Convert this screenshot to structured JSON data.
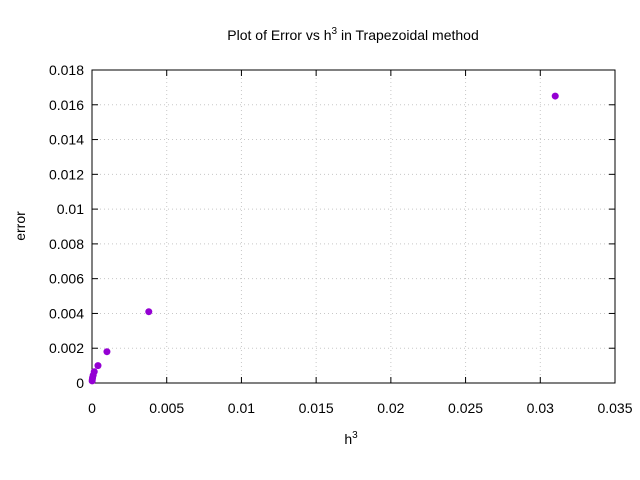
{
  "chart_data": {
    "type": "scatter",
    "title_main": "Plot of Error vs h",
    "title_sup": "3",
    "title_tail": " in Trapezoidal method",
    "xlabel_main": "h",
    "xlabel_sup": "3",
    "ylabel": "error",
    "xlim": [
      0,
      0.035
    ],
    "ylim": [
      0,
      0.018
    ],
    "x_ticks": [
      0,
      0.005,
      0.01,
      0.015,
      0.02,
      0.025,
      0.03,
      0.035
    ],
    "x_tick_labels": [
      "0",
      "0.005",
      "0.01",
      "0.015",
      "0.02",
      "0.025",
      "0.03",
      "0.035"
    ],
    "y_ticks": [
      0,
      0.002,
      0.004,
      0.006,
      0.008,
      0.01,
      0.012,
      0.014,
      0.016,
      0.018
    ],
    "y_tick_labels": [
      "0",
      "0.002",
      "0.004",
      "0.006",
      "0.008",
      "0.01",
      "0.012",
      "0.014",
      "0.016",
      "0.018"
    ],
    "grid": true,
    "point_color": "#9400d3",
    "x": [
      0.031,
      0.0038,
      0.001,
      0.0004,
      0.00015,
      8e-05,
      4e-05,
      2e-05,
      1e-05
    ],
    "y": [
      0.0165,
      0.0041,
      0.0018,
      0.001,
      0.00065,
      0.00045,
      0.0003,
      0.0002,
      0.00012
    ]
  }
}
